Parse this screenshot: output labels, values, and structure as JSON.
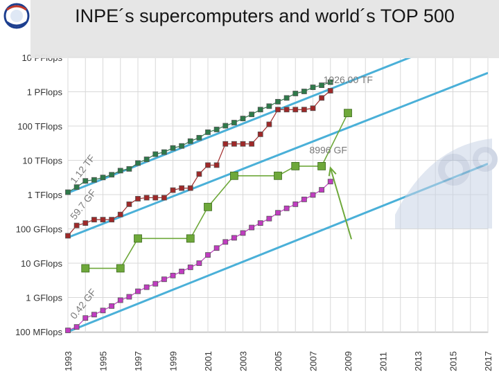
{
  "header": {
    "title": "INPE´s supercomputers and world´s TOP 500",
    "logo_text": "INPE"
  },
  "chart_data": {
    "type": "line",
    "title": "INPE´s supercomputers and world´s TOP 500",
    "xlabel": "",
    "ylabel": "",
    "xlim": [
      1993,
      2017
    ],
    "ylim_log10_flops": [
      8,
      16
    ],
    "y_scale": "log",
    "grid": true,
    "x_ticks": [
      "1993",
      "1995",
      "1997",
      "1999",
      "2001",
      "2003",
      "2005",
      "2007",
      "2009",
      "2011",
      "2013",
      "2015",
      "2017"
    ],
    "y_ticks": [
      {
        "label": "100 MFlops",
        "log10": 8
      },
      {
        "label": "1 GFlops",
        "log10": 9
      },
      {
        "label": "10 GFlops",
        "log10": 10
      },
      {
        "label": "100 GFlops",
        "log10": 11
      },
      {
        "label": "1 TFlops",
        "log10": 12
      },
      {
        "label": "10 TFlops",
        "log10": 13
      },
      {
        "label": "100 TFlops",
        "log10": 14
      },
      {
        "label": "1 PFlops",
        "log10": 15
      },
      {
        "label": "10 PFlops",
        "log10": 16
      }
    ],
    "annotations": [
      {
        "text": "1026.00 TF",
        "x": 2007.6,
        "log10": 15.25
      },
      {
        "text": "8996 GF",
        "x": 2006.8,
        "log10": 13.2
      },
      {
        "text": "1.12 TF",
        "x": 1993.4,
        "log10": 12.3
      },
      {
        "text": "59.7 GF",
        "x": 1993.4,
        "log10": 11.25
      },
      {
        "text": "0.42 GF",
        "x": 1993.4,
        "log10": 8.35
      }
    ],
    "series": [
      {
        "name": "",
        "color": "#2e7a4a",
        "points": [
          [
            1993.0,
            12.07
          ],
          [
            1993.5,
            12.22
          ],
          [
            1994.0,
            12.4
          ],
          [
            1994.5,
            12.43
          ],
          [
            1995.0,
            12.5
          ],
          [
            1995.5,
            12.58
          ],
          [
            1996.0,
            12.7
          ],
          [
            1996.5,
            12.75
          ],
          [
            1997.0,
            12.92
          ],
          [
            1997.5,
            13.03
          ],
          [
            1998.0,
            13.18
          ],
          [
            1998.5,
            13.24
          ],
          [
            1999.0,
            13.36
          ],
          [
            1999.5,
            13.42
          ],
          [
            2000.0,
            13.56
          ],
          [
            2000.5,
            13.66
          ],
          [
            2001.0,
            13.82
          ],
          [
            2001.5,
            13.9
          ],
          [
            2002.0,
            14.01
          ],
          [
            2002.5,
            14.1
          ],
          [
            2003.0,
            14.22
          ],
          [
            2003.5,
            14.34
          ],
          [
            2004.0,
            14.48
          ],
          [
            2004.5,
            14.58
          ],
          [
            2005.0,
            14.71
          ],
          [
            2005.5,
            14.82
          ],
          [
            2006.0,
            14.95
          ],
          [
            2006.5,
            15.01
          ],
          [
            2007.0,
            15.13
          ],
          [
            2007.5,
            15.19
          ],
          [
            2008.0,
            15.28
          ]
        ]
      },
      {
        "name": "",
        "color": "#a02828",
        "points": [
          [
            1993.0,
            10.8
          ],
          [
            1993.5,
            11.1
          ],
          [
            1994.0,
            11.17
          ],
          [
            1994.5,
            11.27
          ],
          [
            1995.0,
            11.27
          ],
          [
            1995.5,
            11.27
          ],
          [
            1996.0,
            11.42
          ],
          [
            1996.5,
            11.72
          ],
          [
            1997.0,
            11.88
          ],
          [
            1997.5,
            11.91
          ],
          [
            1998.0,
            11.91
          ],
          [
            1998.5,
            11.91
          ],
          [
            1999.0,
            12.13
          ],
          [
            1999.5,
            12.19
          ],
          [
            2000.0,
            12.19
          ],
          [
            2000.5,
            12.6
          ],
          [
            2001.0,
            12.86
          ],
          [
            2001.5,
            12.86
          ],
          [
            2002.0,
            13.48
          ],
          [
            2002.5,
            13.48
          ],
          [
            2003.0,
            13.48
          ],
          [
            2003.5,
            13.48
          ],
          [
            2004.0,
            13.76
          ],
          [
            2004.5,
            14.05
          ],
          [
            2005.0,
            14.48
          ],
          [
            2005.5,
            14.48
          ],
          [
            2006.0,
            14.48
          ],
          [
            2006.5,
            14.48
          ],
          [
            2007.0,
            14.52
          ],
          [
            2007.5,
            14.82
          ],
          [
            2008.0,
            15.03
          ]
        ]
      },
      {
        "name": "",
        "color": "#c03cc0",
        "points": [
          [
            1993.0,
            8.04
          ],
          [
            1993.5,
            8.14
          ],
          [
            1994.0,
            8.4
          ],
          [
            1994.5,
            8.5
          ],
          [
            1995.0,
            8.62
          ],
          [
            1995.5,
            8.75
          ],
          [
            1996.0,
            8.92
          ],
          [
            1996.5,
            9.02
          ],
          [
            1997.0,
            9.18
          ],
          [
            1997.5,
            9.3
          ],
          [
            1998.0,
            9.4
          ],
          [
            1998.5,
            9.53
          ],
          [
            1999.0,
            9.64
          ],
          [
            1999.5,
            9.76
          ],
          [
            2000.0,
            9.88
          ],
          [
            2000.5,
            10.0
          ],
          [
            2001.0,
            10.24
          ],
          [
            2001.5,
            10.44
          ],
          [
            2002.0,
            10.62
          ],
          [
            2002.5,
            10.74
          ],
          [
            2003.0,
            10.88
          ],
          [
            2003.5,
            11.04
          ],
          [
            2004.0,
            11.17
          ],
          [
            2004.5,
            11.3
          ],
          [
            2005.0,
            11.47
          ],
          [
            2005.5,
            11.6
          ],
          [
            2006.0,
            11.72
          ],
          [
            2006.5,
            11.86
          ],
          [
            2007.0,
            11.99
          ],
          [
            2007.5,
            12.14
          ],
          [
            2008.0,
            12.38
          ]
        ]
      },
      {
        "name": "",
        "color": "#6ea83a",
        "points": [
          [
            1994.0,
            9.85
          ],
          [
            1996.0,
            9.85
          ],
          [
            1997.0,
            10.72
          ],
          [
            2000.0,
            10.72
          ],
          [
            2001.0,
            11.64
          ],
          [
            2002.5,
            12.55
          ],
          [
            2005.0,
            12.55
          ],
          [
            2006.0,
            12.83
          ],
          [
            2007.5,
            12.83
          ],
          [
            2009.0,
            14.38
          ]
        ]
      }
    ],
    "trend_lines": [
      {
        "color": "#4ab0d8",
        "from": [
          1993,
          12.05
        ],
        "to": [
          2017,
          16.9
        ]
      },
      {
        "color": "#4ab0d8",
        "from": [
          1993,
          10.75
        ],
        "to": [
          2017,
          15.55
        ]
      },
      {
        "color": "#4ab0d8",
        "from": [
          1993,
          8.0
        ],
        "to": [
          2017,
          12.9
        ]
      }
    ],
    "arrows": [
      {
        "color": "#6ea83a",
        "from": [
          2009.2,
          10.7
        ],
        "to": [
          2008.0,
          12.78
        ]
      }
    ]
  }
}
